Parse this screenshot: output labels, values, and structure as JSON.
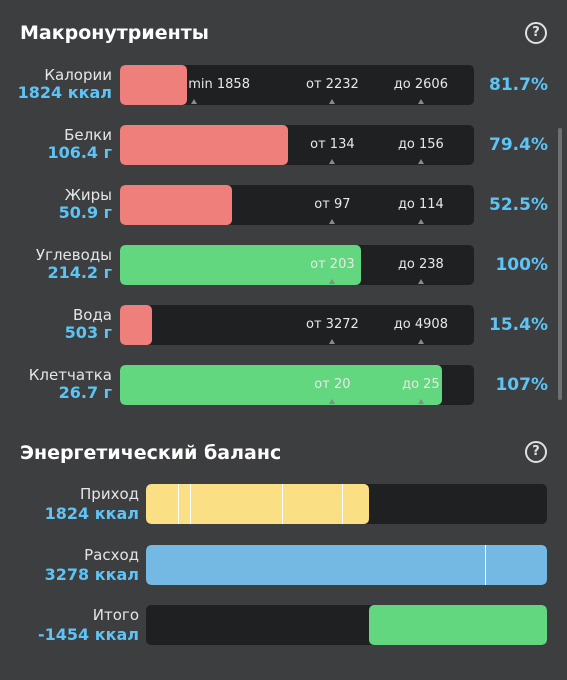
{
  "macros": {
    "title": "Макронутриенты",
    "help_icon": "?",
    "rows": [
      {
        "name": "Калории",
        "value": "1824 ккал",
        "percent": "81.7%",
        "fill_fraction": 0.19,
        "color": "#ee7f7b",
        "markers": [
          {
            "text": "min 1858",
            "frac": 0.28
          },
          {
            "text": "от 2232",
            "frac": 0.6
          },
          {
            "text": "до 2606",
            "frac": 0.85
          }
        ]
      },
      {
        "name": "Белки",
        "value": "106.4 г",
        "percent": "79.4%",
        "fill_fraction": 0.475,
        "color": "#ee7f7b",
        "markers": [
          {
            "text": "от 134",
            "frac": 0.6
          },
          {
            "text": "до 156",
            "frac": 0.85
          }
        ]
      },
      {
        "name": "Жиры",
        "value": "50.9 г",
        "percent": "52.5%",
        "fill_fraction": 0.315,
        "color": "#ee7f7b",
        "markers": [
          {
            "text": "от 97",
            "frac": 0.6
          },
          {
            "text": "до 114",
            "frac": 0.85
          }
        ]
      },
      {
        "name": "Углеводы",
        "value": "214.2 г",
        "percent": "100%",
        "fill_fraction": 0.68,
        "color": "#63d77f",
        "markers": [
          {
            "text": "от 203",
            "frac": 0.6
          },
          {
            "text": "до 238",
            "frac": 0.85
          }
        ]
      },
      {
        "name": "Вода",
        "value": "503 г",
        "percent": "15.4%",
        "fill_fraction": 0.09,
        "color": "#ee7f7b",
        "markers": [
          {
            "text": "от 3272",
            "frac": 0.6
          },
          {
            "text": "до 4908",
            "frac": 0.85
          }
        ]
      },
      {
        "name": "Клетчатка",
        "value": "26.7 г",
        "percent": "107%",
        "fill_fraction": 0.91,
        "color": "#63d77f",
        "markers": [
          {
            "text": "от 20",
            "frac": 0.6
          },
          {
            "text": "до 25",
            "frac": 0.85
          }
        ]
      }
    ]
  },
  "energy": {
    "title": "Энергетический баланс",
    "help_icon": "?",
    "rows": [
      {
        "name": "Приход",
        "value": "1824 ккал",
        "fill_start": 0.0,
        "fill_end": 0.555,
        "color": "#fbdf84",
        "dividers": [
          0.08,
          0.11,
          0.34,
          0.49
        ]
      },
      {
        "name": "Расход",
        "value": "3278 ккал",
        "fill_start": 0.0,
        "fill_end": 1.0,
        "color": "#74b9e3",
        "dividers": [
          0.845
        ]
      },
      {
        "name": "Итого",
        "value": "-1454 ккал",
        "fill_start": 0.555,
        "fill_end": 1.0,
        "color": "#63d77f",
        "dividers": []
      }
    ]
  }
}
